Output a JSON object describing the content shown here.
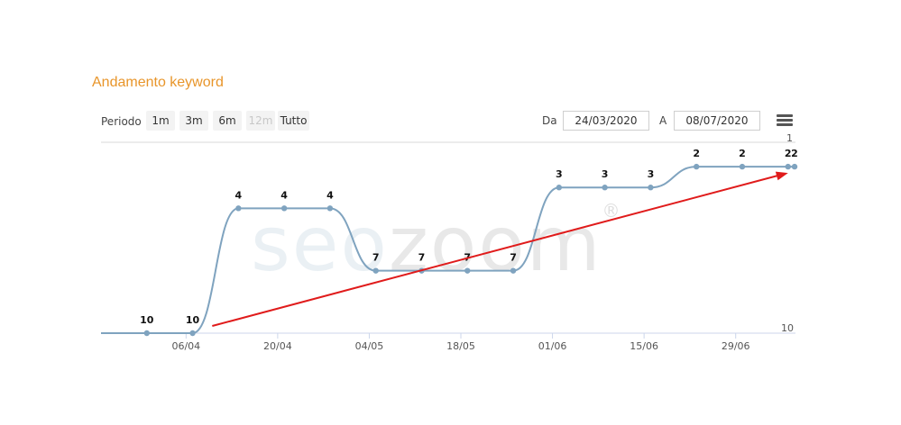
{
  "title": "Andamento keyword",
  "toolbar": {
    "period_label": "Periodo",
    "ranges": [
      {
        "label": "1m",
        "enabled": true
      },
      {
        "label": "3m",
        "enabled": true
      },
      {
        "label": "6m",
        "enabled": true
      },
      {
        "label": "12m",
        "enabled": false
      },
      {
        "label": "Tutto",
        "enabled": true
      }
    ],
    "from_label": "Da",
    "from_value": "24/03/2020",
    "to_label": "A",
    "to_value": "08/07/2020",
    "menu_icon": "hamburger-menu-icon"
  },
  "watermark": {
    "seo": "seo",
    "zoom": "zoom",
    "reg": "®"
  },
  "chart_data": {
    "type": "line",
    "title": "Andamento keyword",
    "xlabel": "",
    "ylabel": "",
    "y_axis": {
      "reversed": true,
      "range": [
        1,
        10
      ],
      "tick_labels": [
        "1",
        "10"
      ]
    },
    "x_tick_labels": [
      "06/04",
      "20/04",
      "04/05",
      "18/05",
      "01/06",
      "15/06",
      "29/06"
    ],
    "series": [
      {
        "color": "#7fa3bf",
        "points": [
          {
            "date": "2020-03-24",
            "value": 10,
            "label": ""
          },
          {
            "date": "2020-03-31",
            "value": 10,
            "label": "10"
          },
          {
            "date": "2020-04-07",
            "value": 10,
            "label": "10"
          },
          {
            "date": "2020-04-14",
            "value": 4,
            "label": "4"
          },
          {
            "date": "2020-04-21",
            "value": 4,
            "label": "4"
          },
          {
            "date": "2020-04-28",
            "value": 4,
            "label": "4"
          },
          {
            "date": "2020-05-05",
            "value": 7,
            "label": "7"
          },
          {
            "date": "2020-05-12",
            "value": 7,
            "label": "7"
          },
          {
            "date": "2020-05-19",
            "value": 7,
            "label": "7"
          },
          {
            "date": "2020-05-26",
            "value": 7,
            "label": "7"
          },
          {
            "date": "2020-06-02",
            "value": 3,
            "label": "3"
          },
          {
            "date": "2020-06-09",
            "value": 3,
            "label": "3"
          },
          {
            "date": "2020-06-16",
            "value": 3,
            "label": "3"
          },
          {
            "date": "2020-06-23",
            "value": 2,
            "label": "2"
          },
          {
            "date": "2020-06-30",
            "value": 2,
            "label": "2"
          },
          {
            "date": "2020-07-07",
            "value": 2,
            "label": "2"
          },
          {
            "date": "2020-07-08",
            "value": 2,
            "label": "2"
          }
        ]
      }
    ],
    "annotations": [
      {
        "type": "arrow",
        "color": "#e01b1b",
        "from": {
          "date": "2020-04-10",
          "value": 10
        },
        "to": {
          "date": "2020-07-07",
          "value": 2
        }
      }
    ],
    "grid": false,
    "legend": "none"
  }
}
